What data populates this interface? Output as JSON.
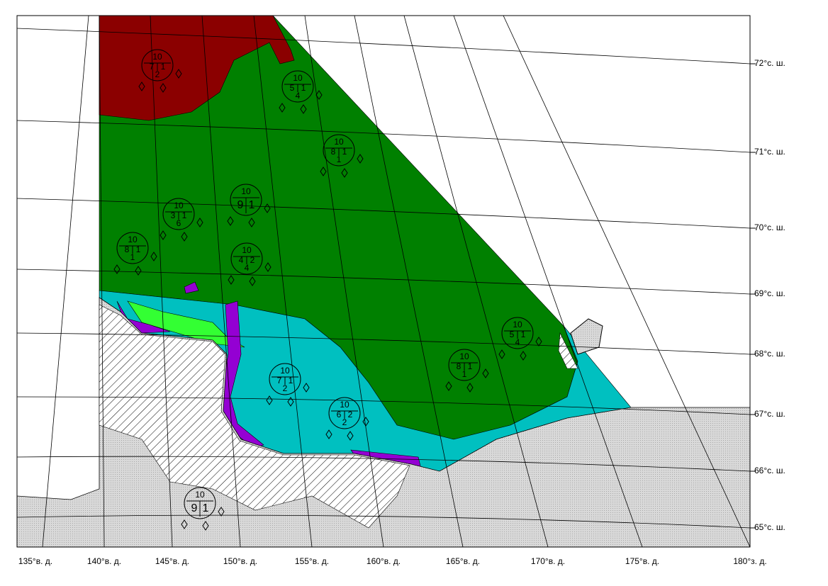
{
  "latitude_labels": [
    "72°с. ш.",
    "71°с. ш.",
    "70°с. ш.",
    "69°с. ш.",
    "68°с. ш.",
    "67°с. ш.",
    "66°с. ш.",
    "65°с. ш."
  ],
  "longitude_labels": [
    "135°в. д.",
    "140°в. д.",
    "145°в. д.",
    "150°в. д.",
    "155°в. д.",
    "160°в. д.",
    "165°в. д.",
    "170°в. д.",
    "175°в. д.",
    "180°з. д."
  ],
  "ice_codes": [
    {
      "total": "10",
      "partials": [
        "7",
        "1",
        "2"
      ]
    },
    {
      "total": "10",
      "partials": [
        "5",
        "1",
        "4"
      ]
    },
    {
      "total": "10",
      "partials": [
        "8",
        "1",
        "1"
      ]
    },
    {
      "total": "10",
      "partials": [
        "9",
        "1"
      ]
    },
    {
      "total": "10",
      "partials": [
        "3",
        "1",
        "6"
      ]
    },
    {
      "total": "10",
      "partials": [
        "8",
        "1",
        "1"
      ]
    },
    {
      "total": "10",
      "partials": [
        "4",
        "2",
        "4"
      ]
    },
    {
      "total": "10",
      "partials": [
        "5",
        "1",
        "4"
      ]
    },
    {
      "total": "10",
      "partials": [
        "8",
        "1",
        "1"
      ]
    },
    {
      "total": "10",
      "partials": [
        "7",
        "1",
        "2"
      ]
    },
    {
      "total": "10",
      "partials": [
        "6",
        "2",
        "2"
      ]
    },
    {
      "total": "10",
      "partials": [
        "9",
        "1"
      ]
    }
  ]
}
